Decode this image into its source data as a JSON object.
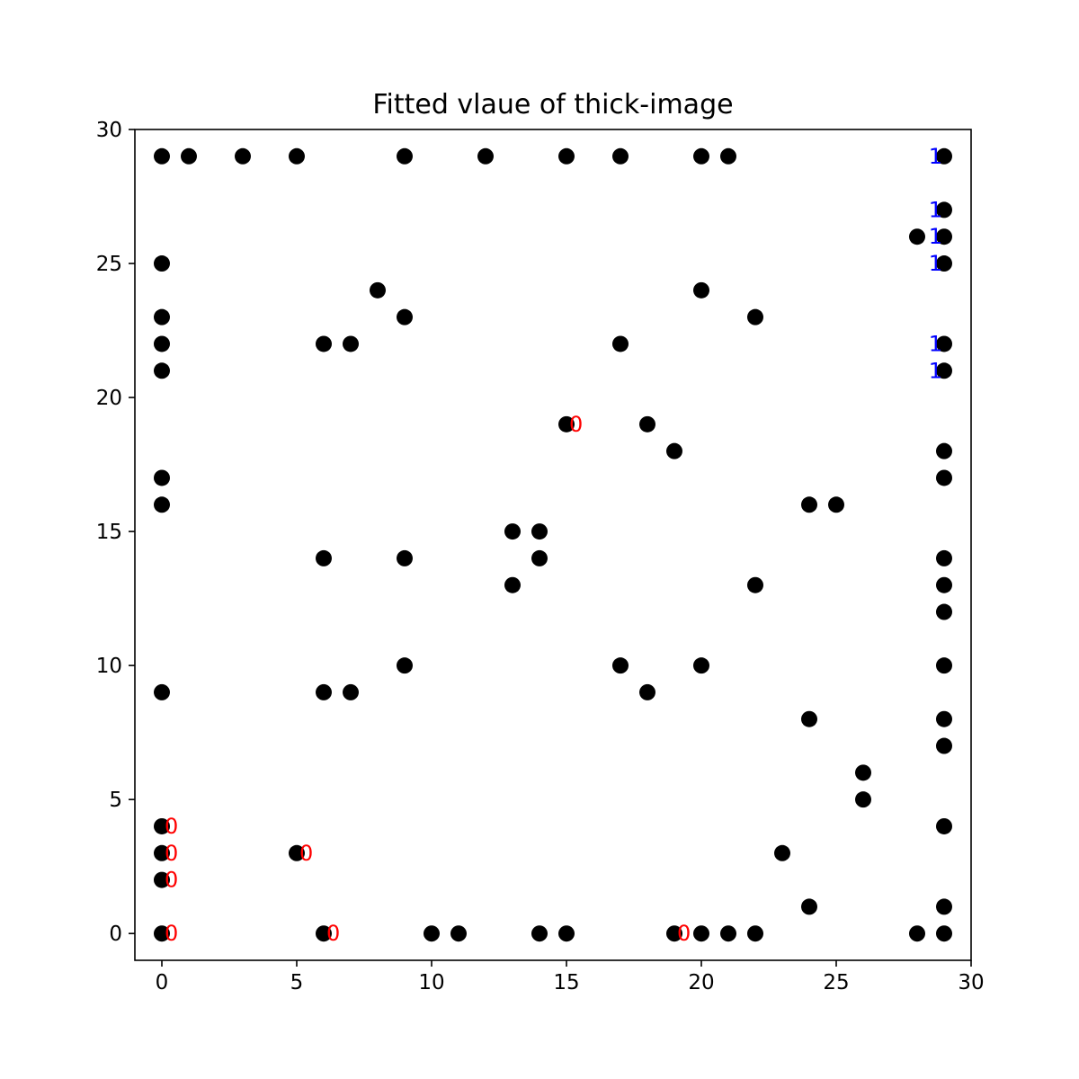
{
  "chart_data": {
    "type": "scatter",
    "title": "Fitted vlaue of thick-image",
    "xlabel": "",
    "ylabel": "",
    "xlim": [
      -1,
      30
    ],
    "ylim": [
      -1,
      30
    ],
    "x_ticks": [
      0,
      5,
      10,
      15,
      20,
      25,
      30
    ],
    "y_ticks": [
      0,
      5,
      10,
      15,
      20,
      25,
      30
    ],
    "grid": false,
    "marker_color": "#000000",
    "points": [
      [
        0,
        29
      ],
      [
        1,
        29
      ],
      [
        3,
        29
      ],
      [
        5,
        29
      ],
      [
        9,
        29
      ],
      [
        12,
        29
      ],
      [
        15,
        29
      ],
      [
        17,
        29
      ],
      [
        20,
        29
      ],
      [
        21,
        29
      ],
      [
        29,
        29
      ],
      [
        29,
        27
      ],
      [
        28,
        26
      ],
      [
        29,
        26
      ],
      [
        0,
        25
      ],
      [
        29,
        25
      ],
      [
        8,
        24
      ],
      [
        20,
        24
      ],
      [
        0,
        23
      ],
      [
        9,
        23
      ],
      [
        22,
        23
      ],
      [
        0,
        22
      ],
      [
        6,
        22
      ],
      [
        7,
        22
      ],
      [
        17,
        22
      ],
      [
        29,
        22
      ],
      [
        0,
        21
      ],
      [
        29,
        21
      ],
      [
        15,
        19
      ],
      [
        18,
        19
      ],
      [
        19,
        18
      ],
      [
        29,
        18
      ],
      [
        0,
        17
      ],
      [
        29,
        17
      ],
      [
        0,
        16
      ],
      [
        24,
        16
      ],
      [
        25,
        16
      ],
      [
        13,
        15
      ],
      [
        14,
        15
      ],
      [
        6,
        14
      ],
      [
        9,
        14
      ],
      [
        14,
        14
      ],
      [
        29,
        14
      ],
      [
        13,
        13
      ],
      [
        22,
        13
      ],
      [
        29,
        13
      ],
      [
        29,
        12
      ],
      [
        9,
        10
      ],
      [
        17,
        10
      ],
      [
        20,
        10
      ],
      [
        29,
        10
      ],
      [
        0,
        9
      ],
      [
        6,
        9
      ],
      [
        7,
        9
      ],
      [
        18,
        9
      ],
      [
        24,
        8
      ],
      [
        29,
        8
      ],
      [
        29,
        7
      ],
      [
        26,
        6
      ],
      [
        26,
        5
      ],
      [
        0,
        4
      ],
      [
        29,
        4
      ],
      [
        0,
        3
      ],
      [
        5,
        3
      ],
      [
        23,
        3
      ],
      [
        0,
        2
      ],
      [
        24,
        1
      ],
      [
        29,
        1
      ],
      [
        0,
        0
      ],
      [
        6,
        0
      ],
      [
        10,
        0
      ],
      [
        11,
        0
      ],
      [
        14,
        0
      ],
      [
        15,
        0
      ],
      [
        19,
        0
      ],
      [
        20,
        0
      ],
      [
        21,
        0
      ],
      [
        22,
        0
      ],
      [
        28,
        0
      ],
      [
        29,
        0
      ]
    ],
    "annotations": [
      {
        "x": 29,
        "y": 29,
        "text": "1",
        "color": "#0000ff"
      },
      {
        "x": 29,
        "y": 27,
        "text": "1",
        "color": "#0000ff"
      },
      {
        "x": 29,
        "y": 26,
        "text": "1",
        "color": "#0000ff"
      },
      {
        "x": 29,
        "y": 25,
        "text": "1",
        "color": "#0000ff"
      },
      {
        "x": 29,
        "y": 22,
        "text": "1",
        "color": "#0000ff"
      },
      {
        "x": 29,
        "y": 21,
        "text": "1",
        "color": "#0000ff"
      },
      {
        "x": 15,
        "y": 19,
        "text": "0",
        "color": "#ff0000"
      },
      {
        "x": 0,
        "y": 4,
        "text": "0",
        "color": "#ff0000"
      },
      {
        "x": 0,
        "y": 3,
        "text": "0",
        "color": "#ff0000"
      },
      {
        "x": 5,
        "y": 3,
        "text": "0",
        "color": "#ff0000"
      },
      {
        "x": 0,
        "y": 2,
        "text": "0",
        "color": "#ff0000"
      },
      {
        "x": 0,
        "y": 0,
        "text": "0",
        "color": "#ff0000"
      },
      {
        "x": 6,
        "y": 0,
        "text": "0",
        "color": "#ff0000"
      },
      {
        "x": 19,
        "y": 0,
        "text": "0",
        "color": "#ff0000"
      }
    ]
  }
}
